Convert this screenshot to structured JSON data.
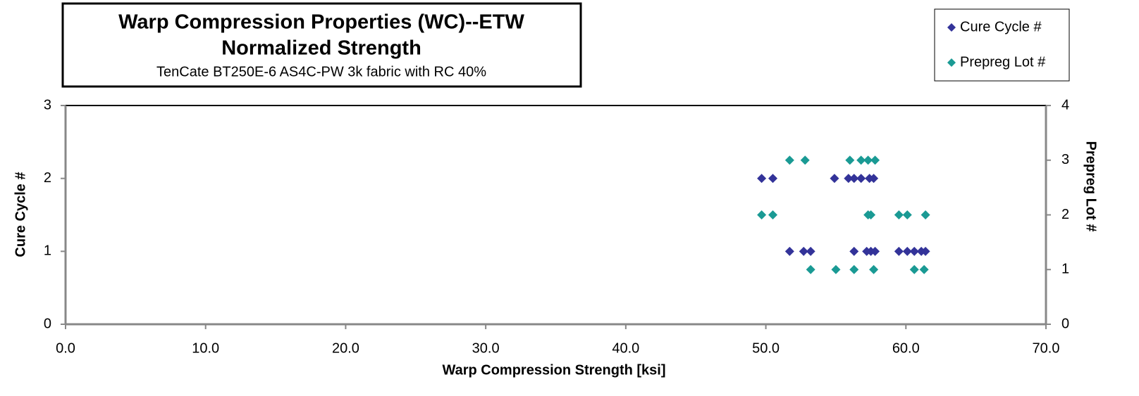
{
  "chart_data": {
    "type": "scatter",
    "title": "Warp Compression Properties (WC)--ETW",
    "subtitle": "Normalized Strength",
    "description": "TenCate  BT250E-6  AS4C-PW  3k fabric with  RC 40%",
    "xlabel": "Warp Compression Strength [ksi]",
    "ylabel": "Cure Cycle #",
    "y2label": "Prepreg Lot #",
    "xlim": [
      0,
      70
    ],
    "xticks": [
      {
        "value": 0,
        "label": "0.0"
      },
      {
        "value": 10,
        "label": "10.0"
      },
      {
        "value": 20,
        "label": "20.0"
      },
      {
        "value": 30,
        "label": "30.0"
      },
      {
        "value": 40,
        "label": "40.0"
      },
      {
        "value": 50,
        "label": "50.0"
      },
      {
        "value": 60,
        "label": "60.0"
      },
      {
        "value": 70,
        "label": "70.0"
      }
    ],
    "ylim": [
      0,
      3
    ],
    "yticks": [
      0,
      1,
      2,
      3
    ],
    "y2lim": [
      0,
      4
    ],
    "y2ticks": [
      0,
      1,
      2,
      3,
      4
    ],
    "legend": "top-right",
    "series": [
      {
        "name": "Cure Cycle #",
        "color": "#333399",
        "x": [
          49.7,
          50.5,
          54.9,
          55.9,
          56.3,
          56.8,
          57.4,
          57.7,
          51.7,
          52.7,
          53.2,
          56.3,
          57.2,
          57.5,
          57.8,
          59.5,
          60.1,
          60.6,
          61.1,
          61.4
        ],
        "values": [
          2,
          2,
          2,
          2,
          2,
          2,
          2,
          2,
          1,
          1,
          1,
          1,
          1,
          1,
          1,
          1,
          1,
          1,
          1,
          1
        ]
      },
      {
        "name": "Prepreg Lot #",
        "color": "#1a9a94",
        "axis": "y2",
        "x": [
          51.7,
          52.8,
          56.0,
          56.8,
          57.3,
          57.8,
          49.7,
          50.5,
          57.3,
          57.5,
          59.5,
          60.1,
          61.4,
          53.2,
          55.0,
          56.3,
          57.7,
          60.6,
          61.3
        ],
        "values": [
          3,
          3,
          3,
          3,
          3,
          3,
          2,
          2,
          2,
          2,
          2,
          2,
          2,
          1,
          1,
          1,
          1,
          1,
          1
        ]
      }
    ]
  }
}
